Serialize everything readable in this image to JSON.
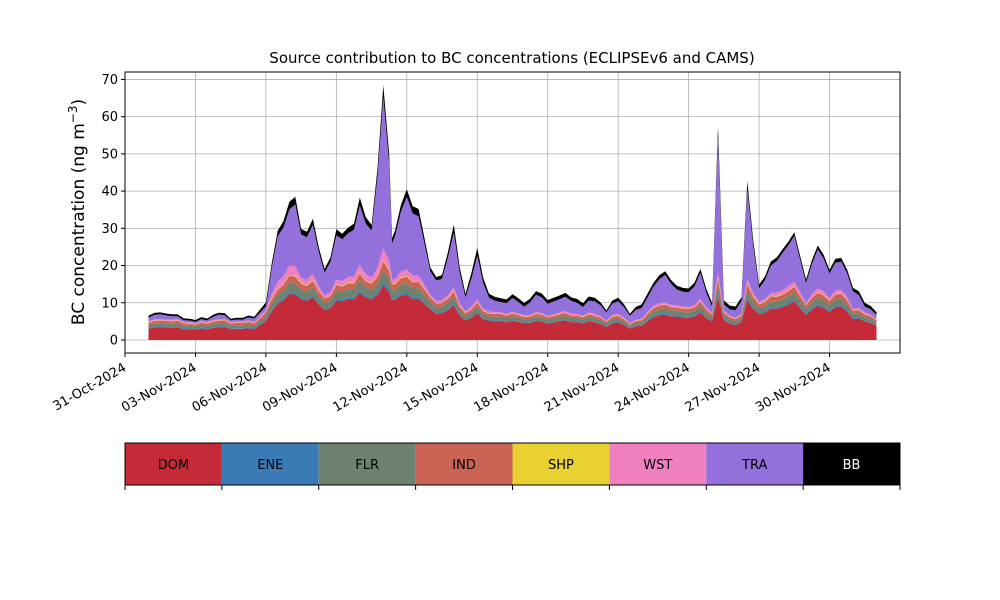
{
  "chart_data": {
    "type": "area",
    "title": "Source contribution to BC concentrations (ECLIPSEv6 and CAMS)",
    "ylabel": "BC concentration (ng m",
    "ylabel_sup": "−3",
    "ylabel_close": ")",
    "ylim": [
      -3.5,
      72
    ],
    "yticks": [
      0,
      10,
      20,
      30,
      40,
      50,
      60,
      70
    ],
    "xlim": [
      "2024-10-31",
      "2024-12-03"
    ],
    "xticks": [
      "31-Oct-2024",
      "03-Nov-2024",
      "06-Nov-2024",
      "09-Nov-2024",
      "12-Nov-2024",
      "15-Nov-2024",
      "18-Nov-2024",
      "21-Nov-2024",
      "24-Nov-2024",
      "27-Nov-2024",
      "30-Nov-2024"
    ],
    "grid": true,
    "x_start": "2024-11-01",
    "x_end": "2024-12-02",
    "key_dates": [
      "2024-11-01",
      "2024-11-01T12",
      "2024-11-02",
      "2024-11-02T12",
      "2024-11-03",
      "2024-11-03T12",
      "2024-11-04",
      "2024-11-04T12",
      "2024-11-05",
      "2024-11-05T12",
      "2024-11-06",
      "2024-11-06T12",
      "2024-11-07",
      "2024-11-07T06",
      "2024-11-07T12",
      "2024-11-08",
      "2024-11-08T12",
      "2024-11-09",
      "2024-11-09T12",
      "2024-11-10",
      "2024-11-10T12",
      "2024-11-11",
      "2024-11-11T06",
      "2024-11-11T09",
      "2024-11-11T12",
      "2024-11-12",
      "2024-11-12T12",
      "2024-11-13",
      "2024-11-13T12",
      "2024-11-14",
      "2024-11-14T12",
      "2024-11-15",
      "2024-11-15T12",
      "2024-11-16",
      "2024-11-16T12",
      "2024-11-17",
      "2024-11-17T12",
      "2024-11-18",
      "2024-11-18T12",
      "2024-11-19",
      "2024-11-19T12",
      "2024-11-20",
      "2024-11-20T12",
      "2024-11-21",
      "2024-11-21T12",
      "2024-11-22",
      "2024-11-22T12",
      "2024-11-23",
      "2024-11-23T12",
      "2024-11-24",
      "2024-11-24T12",
      "2024-11-25",
      "2024-11-25T06",
      "2024-11-25T12",
      "2024-11-26",
      "2024-11-26T06",
      "2024-11-26T12",
      "2024-11-27",
      "2024-11-27T12",
      "2024-11-28",
      "2024-11-28T12",
      "2024-11-29",
      "2024-11-29T12",
      "2024-11-30",
      "2024-11-30T12",
      "2024-12-01",
      "2024-12-01T12",
      "2024-12-02"
    ],
    "total": [
      6.5,
      7.5,
      7,
      6,
      5.5,
      6,
      7.5,
      6,
      6,
      6.5,
      10,
      30,
      36,
      38,
      30,
      31,
      19,
      28,
      30,
      36,
      31,
      65,
      50,
      28,
      30,
      40,
      35,
      19,
      17,
      30,
      12,
      24,
      12,
      11,
      12,
      10,
      13,
      11,
      12,
      12,
      10,
      12,
      8,
      12,
      7,
      10,
      15,
      19,
      14,
      14,
      18,
      10,
      60,
      10,
      9,
      12,
      40,
      15,
      20,
      25,
      28,
      17,
      25,
      20,
      22,
      15,
      10,
      8
    ],
    "bb": [
      0.5,
      0.5,
      0.5,
      0.5,
      0.5,
      0.5,
      0.5,
      0.5,
      0.5,
      0.5,
      1,
      1.5,
      2,
      2,
      1.5,
      1.5,
      1,
      1.5,
      1.5,
      2,
      1.5,
      3,
      2.5,
      1.5,
      1.5,
      2,
      2,
      1,
      1,
      2,
      1,
      2,
      1,
      1,
      1,
      1,
      1,
      1,
      1,
      1,
      1,
      1,
      0.5,
      1,
      0.5,
      1,
      1,
      1,
      1,
      1,
      1,
      1,
      3,
      1,
      1,
      1,
      2,
      1,
      1,
      1,
      1,
      1,
      1,
      1,
      1,
      1,
      1,
      0.8
    ],
    "series": [
      {
        "name": "DOM",
        "values": [
          3,
          3.5,
          3.3,
          3,
          2.8,
          3,
          3.5,
          3,
          3,
          3,
          5,
          10,
          12,
          12,
          11,
          11,
          8,
          10,
          11,
          12,
          11,
          14,
          13,
          11,
          11,
          12,
          11,
          8,
          7,
          9,
          5,
          7,
          5,
          5,
          5,
          4.5,
          5,
          4.5,
          5,
          5,
          4.5,
          5,
          3.5,
          5,
          3,
          4,
          6,
          7,
          6,
          6,
          7,
          5,
          12,
          5,
          4,
          5,
          10,
          7,
          8,
          9,
          10,
          7,
          9,
          8,
          9,
          6,
          5,
          4
        ]
      },
      {
        "name": "ENE",
        "values": [
          0.2,
          0.2,
          0.2,
          0.2,
          0.2,
          0.2,
          0.2,
          0.2,
          0.2,
          0.2,
          0.3,
          0.4,
          0.5,
          0.5,
          0.4,
          0.4,
          0.3,
          0.4,
          0.4,
          0.5,
          0.4,
          0.7,
          0.6,
          0.4,
          0.4,
          0.5,
          0.5,
          0.3,
          0.3,
          0.4,
          0.2,
          0.3,
          0.2,
          0.2,
          0.2,
          0.2,
          0.2,
          0.2,
          0.2,
          0.2,
          0.2,
          0.2,
          0.2,
          0.2,
          0.2,
          0.2,
          0.3,
          0.3,
          0.3,
          0.3,
          0.3,
          0.2,
          0.7,
          0.2,
          0.2,
          0.2,
          0.5,
          0.3,
          0.3,
          0.4,
          0.4,
          0.3,
          0.4,
          0.3,
          0.3,
          0.3,
          0.2,
          0.2
        ]
      },
      {
        "name": "FLR",
        "values": [
          0.8,
          0.9,
          0.9,
          0.8,
          0.7,
          0.8,
          0.9,
          0.8,
          0.8,
          0.8,
          1.2,
          2,
          2.5,
          2.5,
          2.2,
          2.2,
          1.6,
          2,
          2.2,
          2.5,
          2.2,
          3,
          2.8,
          2.2,
          2.2,
          2.5,
          2.3,
          1.6,
          1.4,
          1.8,
          1,
          1.4,
          1,
          1,
          1,
          0.9,
          1,
          0.9,
          1,
          1,
          0.9,
          1,
          0.7,
          1,
          0.6,
          0.8,
          1.2,
          1.4,
          1.2,
          1.2,
          1.4,
          1,
          2.5,
          1,
          0.8,
          1,
          2,
          1.4,
          1.6,
          1.8,
          2,
          1.4,
          1.8,
          1.6,
          1.8,
          1.2,
          1,
          0.8
        ]
      },
      {
        "name": "IND",
        "values": [
          0.6,
          0.7,
          0.7,
          0.6,
          0.5,
          0.6,
          0.7,
          0.6,
          0.6,
          0.6,
          0.9,
          1.4,
          1.8,
          1.8,
          1.6,
          1.6,
          1.2,
          1.5,
          1.6,
          1.8,
          1.6,
          2.4,
          2.2,
          1.6,
          1.6,
          1.8,
          1.7,
          1.2,
          1,
          1.3,
          0.7,
          1,
          0.7,
          0.7,
          0.7,
          0.6,
          0.7,
          0.6,
          0.7,
          0.7,
          0.6,
          0.7,
          0.5,
          0.7,
          0.4,
          0.6,
          0.9,
          1,
          0.9,
          0.9,
          1,
          0.7,
          2,
          0.7,
          0.6,
          0.7,
          1.5,
          1,
          1.2,
          1.3,
          1.4,
          1,
          1.3,
          1.2,
          1.3,
          0.9,
          0.7,
          0.6
        ]
      },
      {
        "name": "SHP",
        "values": [
          0.1,
          0.1,
          0.1,
          0.1,
          0.1,
          0.1,
          0.1,
          0.1,
          0.1,
          0.1,
          0.1,
          0.2,
          0.2,
          0.2,
          0.2,
          0.2,
          0.1,
          0.2,
          0.2,
          0.2,
          0.2,
          0.3,
          0.3,
          0.2,
          0.2,
          0.2,
          0.2,
          0.1,
          0.1,
          0.2,
          0.1,
          0.1,
          0.1,
          0.1,
          0.1,
          0.1,
          0.1,
          0.1,
          0.1,
          0.1,
          0.1,
          0.1,
          0.1,
          0.1,
          0.1,
          0.1,
          0.1,
          0.1,
          0.1,
          0.1,
          0.1,
          0.1,
          0.3,
          0.1,
          0.1,
          0.1,
          0.2,
          0.1,
          0.1,
          0.2,
          0.2,
          0.1,
          0.2,
          0.1,
          0.2,
          0.1,
          0.1,
          0.1
        ]
      },
      {
        "name": "WST",
        "values": [
          0.3,
          0.3,
          0.3,
          0.3,
          0.3,
          0.3,
          0.3,
          0.3,
          0.3,
          0.3,
          0.5,
          2,
          2.5,
          2.5,
          1.5,
          1.5,
          0.8,
          1.2,
          1.5,
          2,
          1.5,
          3,
          2.5,
          1.2,
          1.3,
          1.8,
          1.5,
          0.7,
          0.6,
          1,
          0.4,
          0.8,
          0.4,
          0.4,
          0.4,
          0.3,
          0.4,
          0.3,
          0.4,
          0.4,
          0.3,
          0.4,
          0.3,
          0.4,
          0.2,
          0.3,
          0.5,
          0.6,
          0.5,
          0.5,
          0.6,
          0.4,
          1.5,
          0.4,
          0.3,
          0.4,
          1.2,
          0.6,
          0.8,
          1,
          1.2,
          0.6,
          1,
          0.8,
          0.9,
          0.5,
          0.4,
          0.3
        ]
      }
    ],
    "remainder_series": "TRA",
    "legend": [
      {
        "name": "DOM",
        "color": "#c42a38",
        "text_color": "#000000"
      },
      {
        "name": "ENE",
        "color": "#3a7ab5",
        "text_color": "#000000"
      },
      {
        "name": "FLR",
        "color": "#6e8270",
        "text_color": "#000000"
      },
      {
        "name": "IND",
        "color": "#c96454",
        "text_color": "#000000"
      },
      {
        "name": "SHP",
        "color": "#e8d130",
        "text_color": "#000000"
      },
      {
        "name": "WST",
        "color": "#f080bf",
        "text_color": "#000000"
      },
      {
        "name": "TRA",
        "color": "#9370db",
        "text_color": "#000000"
      },
      {
        "name": "BB",
        "color": "#000000",
        "text_color": "#ffffff"
      }
    ],
    "legend_placement": "bottom"
  }
}
